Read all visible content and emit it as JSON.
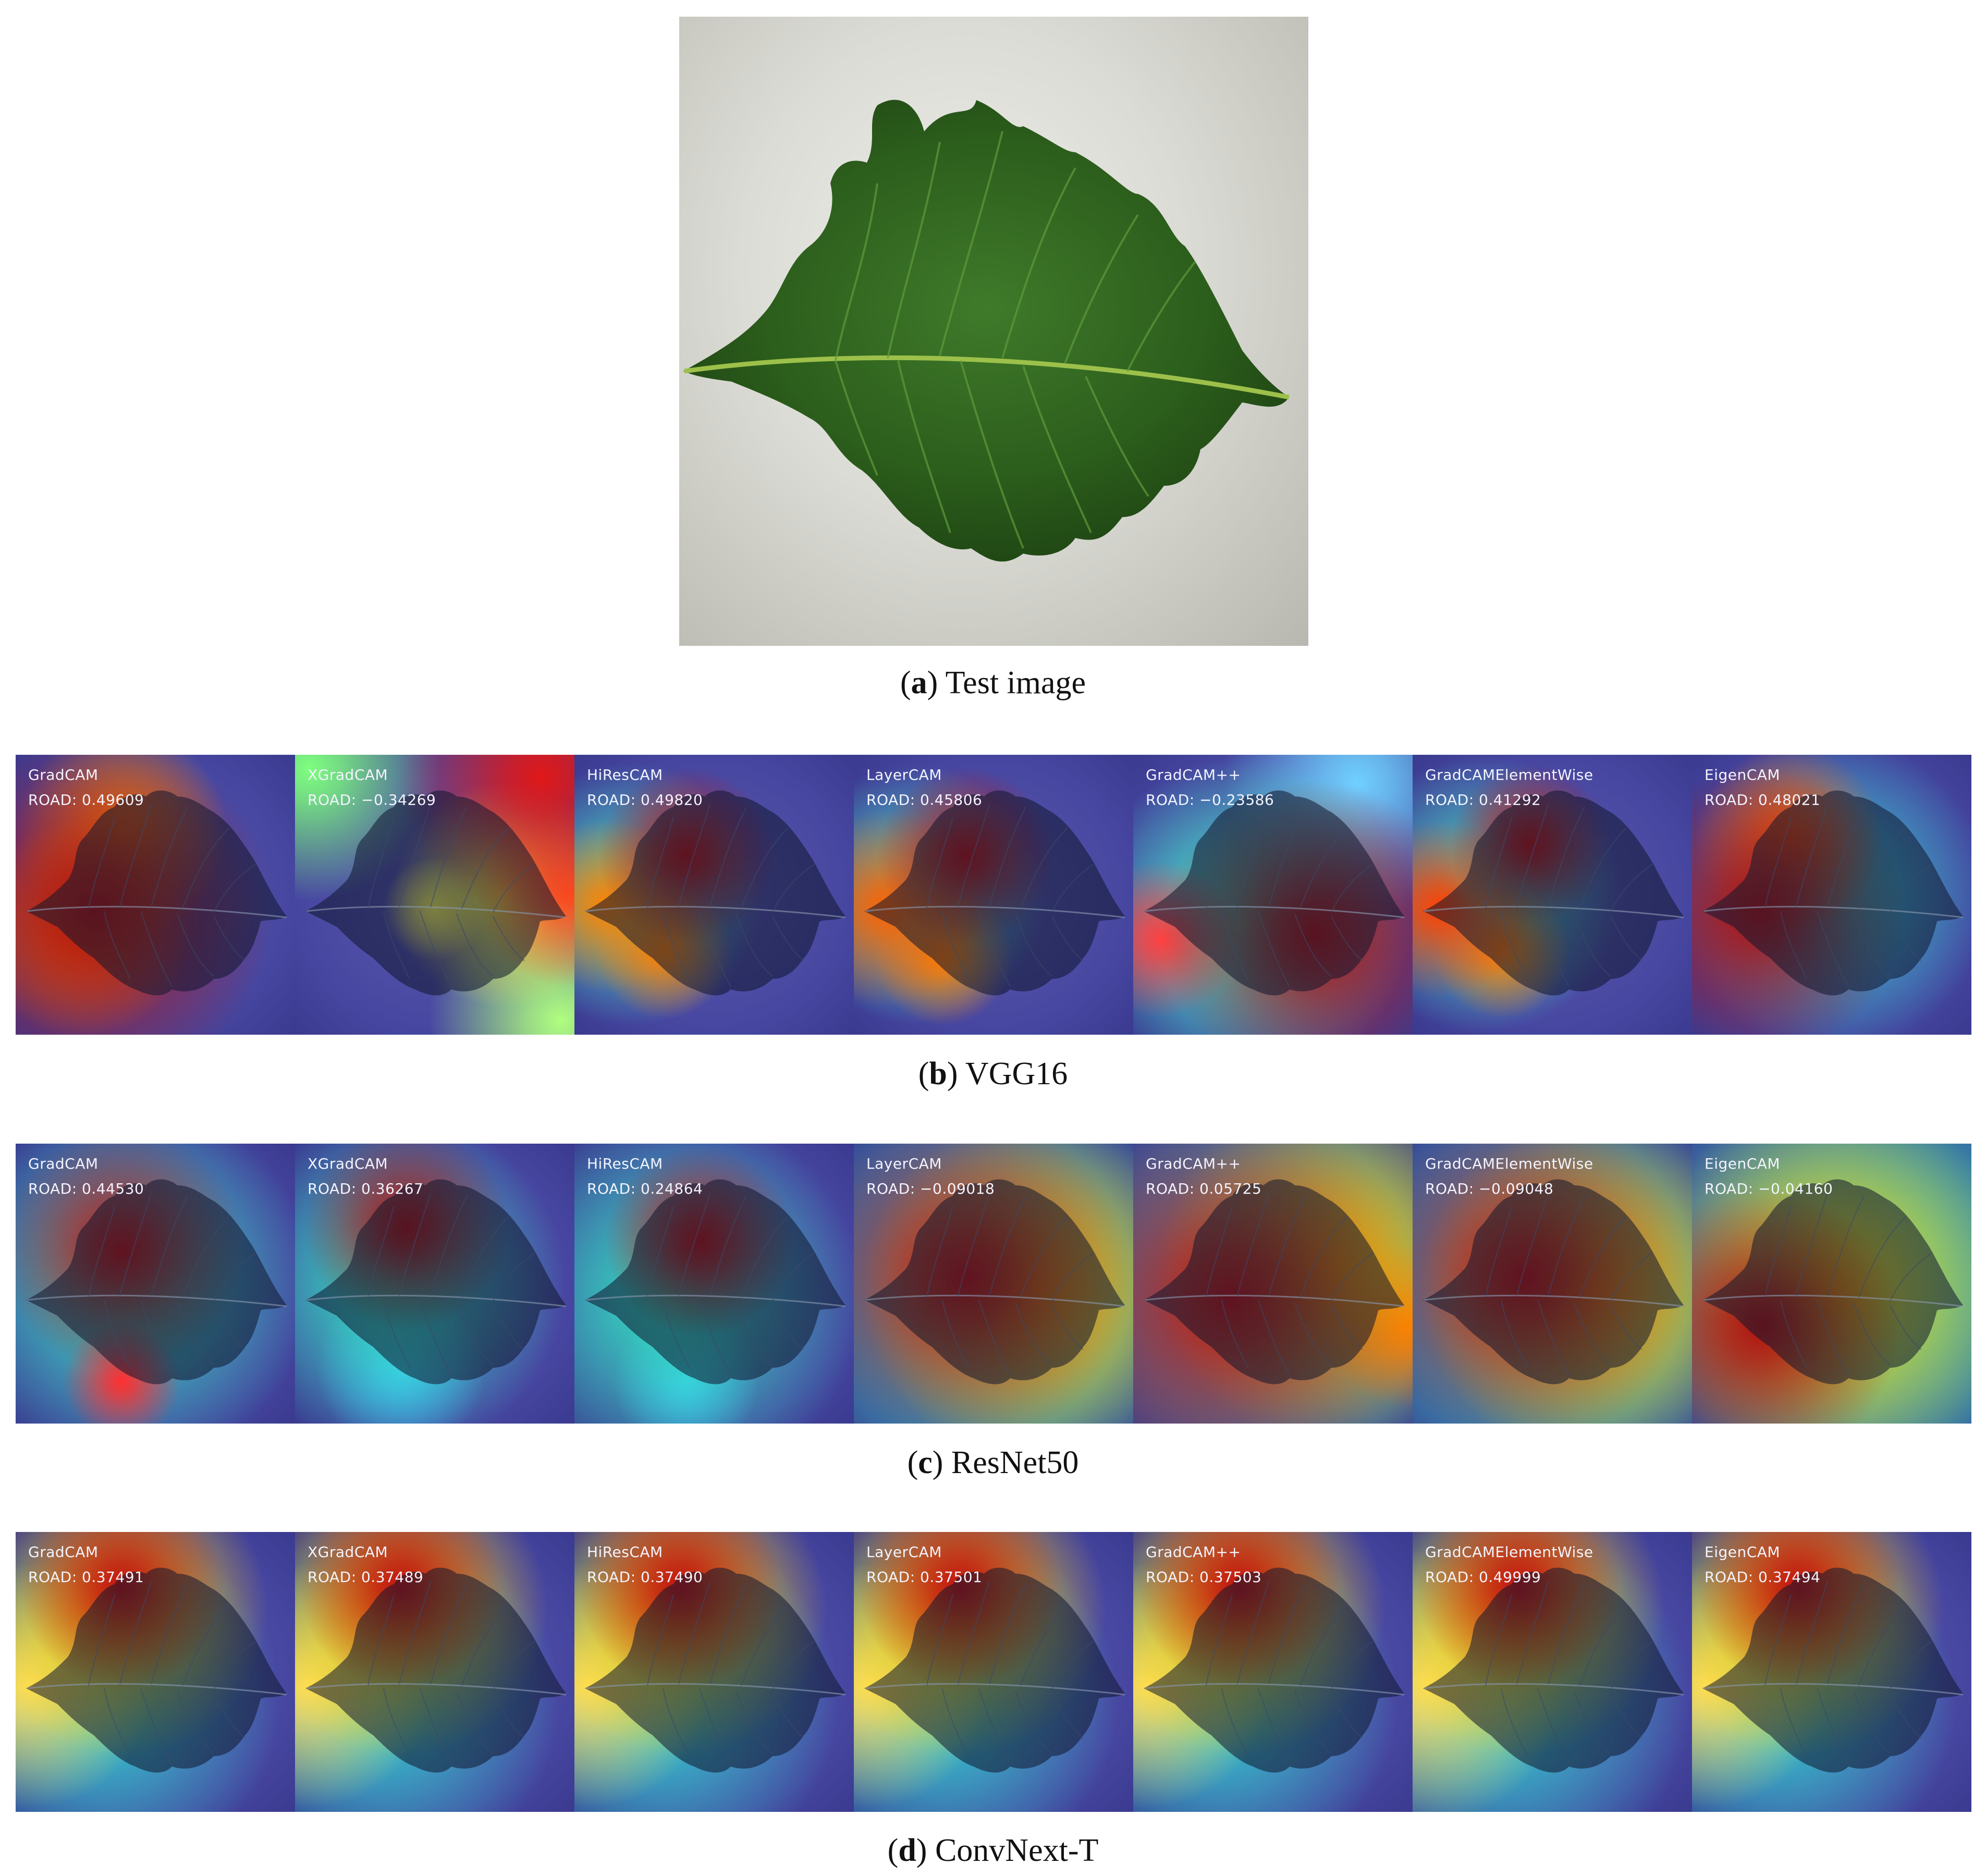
{
  "captions": {
    "a": {
      "letter": "a",
      "text": "Test image"
    },
    "b": {
      "letter": "b",
      "text": "VGG16"
    },
    "c": {
      "letter": "c",
      "text": "ResNet50"
    },
    "d": {
      "letter": "d",
      "text": "ConvNext-T"
    }
  },
  "rows": [
    {
      "key": "b",
      "tiles": [
        {
          "method": "GradCAM",
          "road": "ROAD: 0.49609"
        },
        {
          "method": "XGradCAM",
          "road": "ROAD: −0.34269"
        },
        {
          "method": "HiResCAM",
          "road": "ROAD: 0.49820"
        },
        {
          "method": "LayerCAM",
          "road": "ROAD: 0.45806"
        },
        {
          "method": "GradCAM++",
          "road": "ROAD: −0.23586"
        },
        {
          "method": "GradCAMElementWise",
          "road": "ROAD: 0.41292"
        },
        {
          "method": "EigenCAM",
          "road": "ROAD: 0.48021"
        }
      ]
    },
    {
      "key": "c",
      "tiles": [
        {
          "method": "GradCAM",
          "road": "ROAD: 0.44530"
        },
        {
          "method": "XGradCAM",
          "road": "ROAD: 0.36267"
        },
        {
          "method": "HiResCAM",
          "road": "ROAD: 0.24864"
        },
        {
          "method": "LayerCAM",
          "road": "ROAD: −0.09018"
        },
        {
          "method": "GradCAM++",
          "road": "ROAD: 0.05725"
        },
        {
          "method": "GradCAMElementWise",
          "road": "ROAD: −0.09048"
        },
        {
          "method": "EigenCAM",
          "road": "ROAD: −0.04160"
        }
      ]
    },
    {
      "key": "d",
      "tiles": [
        {
          "method": "GradCAM",
          "road": "ROAD: 0.37491"
        },
        {
          "method": "XGradCAM",
          "road": "ROAD: 0.37489"
        },
        {
          "method": "HiResCAM",
          "road": "ROAD: 0.37490"
        },
        {
          "method": "LayerCAM",
          "road": "ROAD: 0.37501"
        },
        {
          "method": "GradCAM++",
          "road": "ROAD: 0.37503"
        },
        {
          "method": "GradCAMElementWise",
          "road": "ROAD: 0.49999"
        },
        {
          "method": "EigenCAM",
          "road": "ROAD: 0.37494"
        }
      ]
    }
  ]
}
